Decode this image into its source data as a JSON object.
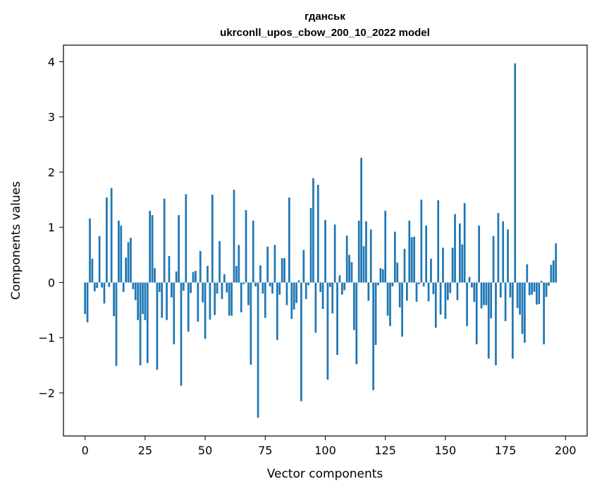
{
  "chart_data": {
    "type": "bar",
    "title": "гданськ",
    "subtitle": "ukrconll_upos_cbow_200_10_2022 model",
    "xlabel": "Vector components",
    "ylabel": "Components values",
    "xlim": [
      -9,
      209
    ],
    "ylim": [
      -2.78,
      4.3
    ],
    "x_ticks": [
      0,
      25,
      50,
      75,
      100,
      125,
      150,
      175,
      200
    ],
    "y_ticks": [
      -2,
      -1,
      0,
      1,
      2,
      3,
      4
    ],
    "x_tick_labels": [
      "0",
      "25",
      "50",
      "75",
      "100",
      "125",
      "150",
      "175",
      "200"
    ],
    "y_tick_labels": [
      "−2",
      "−1",
      "0",
      "1",
      "2",
      "3",
      "4"
    ],
    "grid": false,
    "bar_color": "#1f77b4",
    "values": [
      -0.57,
      -0.72,
      1.16,
      0.43,
      -0.16,
      -0.1,
      0.84,
      -0.09,
      -0.38,
      1.54,
      -0.08,
      1.71,
      -0.61,
      -1.51,
      1.12,
      1.03,
      -0.17,
      0.45,
      0.73,
      0.81,
      -0.12,
      -0.32,
      -0.68,
      -1.5,
      -0.57,
      -0.68,
      -1.46,
      1.3,
      1.22,
      0.26,
      -1.58,
      -0.17,
      -0.64,
      1.52,
      -0.68,
      0.48,
      -0.27,
      -1.12,
      0.2,
      1.22,
      -1.87,
      -0.15,
      1.6,
      -0.89,
      -0.19,
      0.19,
      0.21,
      -0.71,
      0.57,
      -0.36,
      -1.02,
      0.3,
      -0.67,
      1.59,
      -0.59,
      -0.2,
      0.75,
      -0.3,
      0.15,
      -0.18,
      -0.6,
      -0.6,
      1.68,
      0.3,
      0.68,
      -0.54,
      -0.03,
      1.31,
      -0.41,
      -1.49,
      1.12,
      -0.07,
      -2.45,
      0.31,
      -0.2,
      -0.64,
      0.65,
      -0.07,
      -0.2,
      0.68,
      -1.04,
      -0.22,
      0.44,
      0.44,
      -0.41,
      1.54,
      -0.66,
      -0.49,
      -0.37,
      0.04,
      -2.15,
      0.59,
      -0.3,
      -0.05,
      1.35,
      1.89,
      -0.91,
      1.77,
      -0.17,
      -0.48,
      1.13,
      -1.76,
      -0.08,
      -0.56,
      1.05,
      -1.31,
      0.13,
      -0.22,
      -0.14,
      0.85,
      0.5,
      0.37,
      -0.86,
      -1.48,
      1.12,
      2.26,
      0.66,
      1.11,
      -0.33,
      0.96,
      -1.95,
      -1.13,
      -0.05,
      0.26,
      0.24,
      1.3,
      -0.6,
      -0.79,
      -0.07,
      0.92,
      0.36,
      -0.45,
      -0.98,
      0.61,
      -0.33,
      1.12,
      0.82,
      0.83,
      -0.35,
      -0.03,
      1.5,
      -0.07,
      1.03,
      -0.34,
      0.43,
      -0.21,
      -0.82,
      1.49,
      -0.58,
      0.63,
      -0.66,
      -0.32,
      -0.19,
      0.63,
      1.24,
      -0.32,
      1.07,
      0.69,
      1.44,
      -0.79,
      0.1,
      -0.09,
      -0.35,
      -1.12,
      1.03,
      -0.47,
      -0.41,
      -0.41,
      -1.38,
      -0.65,
      0.84,
      -1.5,
      1.26,
      -0.27,
      1.11,
      -0.7,
      0.96,
      -0.27,
      -1.38,
      3.97,
      -0.46,
      -0.58,
      -0.93,
      -1.09,
      0.33,
      -0.23,
      -0.22,
      -0.17,
      -0.4,
      -0.39,
      0.03,
      -1.12,
      -0.26,
      -0.06,
      0.32,
      0.4,
      0.71
    ]
  }
}
